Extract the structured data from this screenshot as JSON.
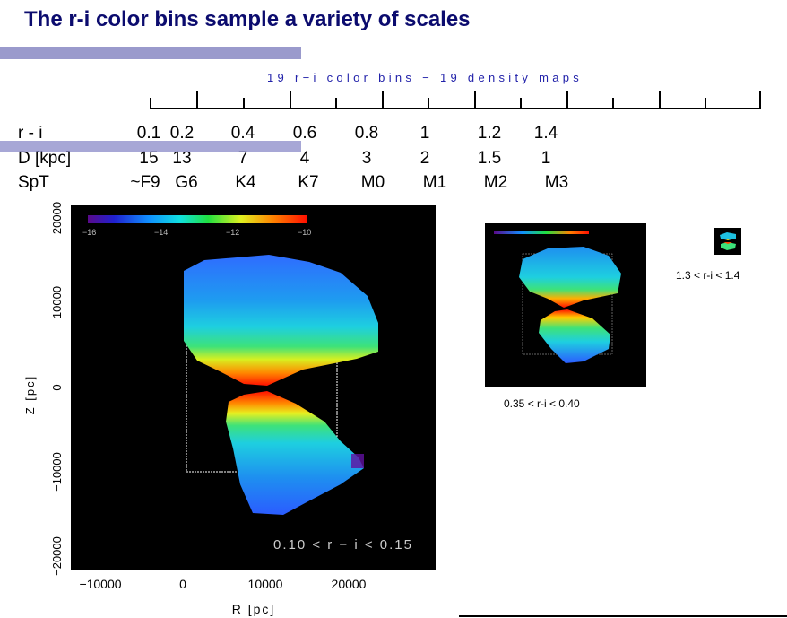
{
  "title": "The r-i color bins sample a variety of scales",
  "scale_caption": "19 r−i color bins − 19 density maps",
  "rows": {
    "ri": {
      "label": "r - i",
      "values": [
        "0.1",
        "0.2",
        "0.4",
        "0.6",
        "0.8",
        "1",
        "1.2",
        "1.4"
      ]
    },
    "dist": {
      "label": "D [kpc]",
      "values": [
        "15",
        "13",
        "7",
        "4",
        "3",
        "2",
        "1.5",
        "1"
      ]
    },
    "spt": {
      "label": "SpT",
      "values": [
        "~F9",
        "G6",
        "K4",
        "K7",
        "M0",
        "M1",
        "M2",
        "M3"
      ]
    }
  },
  "main_map": {
    "colorbar_ticks": [
      "−16",
      "−14",
      "−12",
      "−10"
    ],
    "bin_label": "0.10 < r − i < 0.15",
    "x_ticks": [
      "−10000",
      "0",
      "10000",
      "20000"
    ],
    "y_ticks": [
      "−20000",
      "−10000",
      "0",
      "10000",
      "20000"
    ],
    "xlabel": "R [pc]",
    "ylabel": "Z [pc]"
  },
  "mid_map": {
    "caption": "0.35 < r-i < 0.40"
  },
  "small_map": {
    "caption": "1.3 < r-i < 1.4"
  },
  "colors": {
    "title": "#0b0b6e",
    "accent_bar": "#9a9acc",
    "caption": "#2222aa",
    "map_background": "#000000"
  }
}
